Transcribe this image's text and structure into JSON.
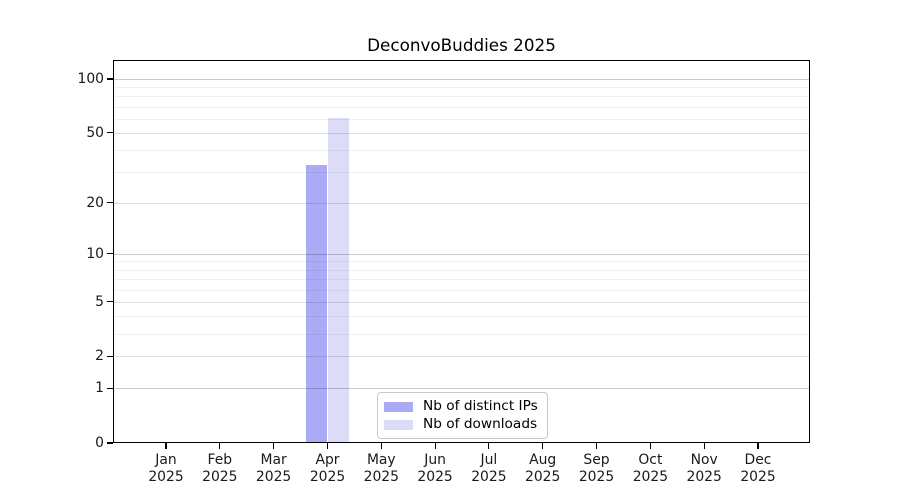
{
  "chart_data": {
    "type": "bar",
    "title": "DeconvoBuddies 2025",
    "categories": [
      "Jan",
      "Feb",
      "Mar",
      "Apr",
      "May",
      "Jun",
      "Jul",
      "Aug",
      "Sep",
      "Oct",
      "Nov",
      "Dec"
    ],
    "year": "2025",
    "series": [
      {
        "name": "Nb of distinct IPs",
        "color": "#aaaaf6",
        "values": [
          0,
          0,
          0,
          33,
          0,
          0,
          0,
          0,
          0,
          0,
          0,
          0
        ]
      },
      {
        "name": "Nb of downloads",
        "color": "#dcdcf9",
        "values": [
          0,
          0,
          0,
          61,
          0,
          0,
          0,
          0,
          0,
          0,
          0,
          0
        ]
      }
    ],
    "yscale": "log1p",
    "yticks": [
      0,
      1,
      2,
      5,
      10,
      20,
      50,
      100
    ],
    "ylim": [
      0,
      128
    ],
    "grid": "horizontal",
    "legend_position": "lower center inside"
  }
}
